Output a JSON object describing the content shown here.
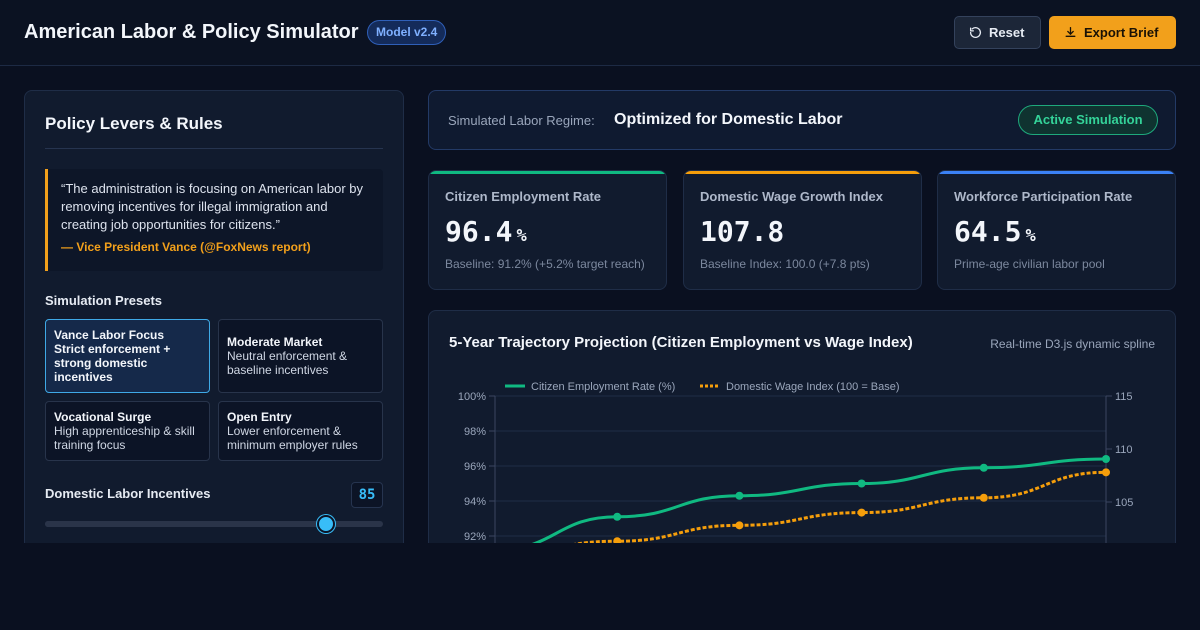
{
  "header": {
    "title": "American Labor & Policy Simulator",
    "version": "Model v2.4",
    "reset_label": "Reset",
    "export_label": "Export Brief"
  },
  "left_panel": {
    "title": "Policy Levers & Rules",
    "quote": {
      "text": "“The administration is focusing on American labor by removing incentives for illegal immigration and creating job opportunities for citizens.”",
      "author": "— Vice President Vance (@FoxNews report)"
    },
    "presets_title": "Simulation Presets",
    "presets": [
      {
        "name": "Vance Labor Focus",
        "desc": "Strict enforcement + strong domestic incentives",
        "active": true
      },
      {
        "name": "Moderate Market",
        "desc": "Neutral enforcement & baseline incentives",
        "active": false
      },
      {
        "name": "Vocational Surge",
        "desc": "High apprenticeship & skill training focus",
        "active": false
      },
      {
        "name": "Open Entry",
        "desc": "Lower enforcement & minimum employer rules",
        "active": false
      }
    ],
    "slider": {
      "label": "Domestic Labor Incentives",
      "value": "85",
      "fraction": 0.83
    }
  },
  "regime": {
    "label": "Simulated Labor Regime:",
    "value": "Optimized for Domestic Labor",
    "badge": "Active Simulation"
  },
  "kpis": [
    {
      "label": "Citizen Employment Rate",
      "value": "96.4",
      "unit": "%",
      "sub": "Baseline: 91.2% (+5.2% target reach)",
      "color": "#10b981"
    },
    {
      "label": "Domestic Wage Growth Index",
      "value": "107.8",
      "unit": "",
      "sub": "Baseline Index: 100.0 (+7.8 pts)",
      "color": "#f59e0b"
    },
    {
      "label": "Workforce Participation Rate",
      "value": "64.5",
      "unit": "%",
      "sub": "Prime-age civilian labor pool",
      "color": "#3b82f6"
    }
  ],
  "chart": {
    "title": "5-Year Trajectory Projection (Citizen Employment vs Wage Index)",
    "note": "Real-time D3.js dynamic spline"
  },
  "chart_data": {
    "type": "line",
    "legend": [
      "Citizen Employment Rate (%)",
      "Domestic Wage Index (100 = Base)"
    ],
    "legend_placement": "top-left",
    "x": [
      0,
      1,
      2,
      3,
      4,
      5
    ],
    "series": [
      {
        "name": "Citizen Employment Rate (%)",
        "axis": "left",
        "color": "#10b981",
        "values": [
          91.2,
          93.1,
          94.3,
          95.0,
          95.9,
          96.4
        ]
      },
      {
        "name": "Domestic Wage Index (100 = Base)",
        "axis": "right",
        "color": "#f59e0b",
        "values": [
          100.0,
          101.3,
          102.8,
          104.0,
          105.4,
          107.8
        ]
      }
    ],
    "y_left": {
      "ticks": [
        "100%",
        "98%",
        "96%",
        "94%",
        "92%"
      ],
      "range": [
        90,
        100
      ]
    },
    "y_right": {
      "ticks": [
        "115",
        "110",
        "105"
      ],
      "range": [
        100,
        115
      ]
    },
    "grid": true
  }
}
